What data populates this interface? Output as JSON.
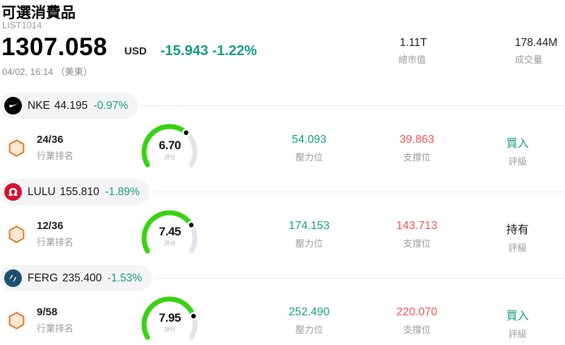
{
  "header": {
    "title": "可選消費品",
    "list_id": "LIST1014",
    "price": "1307.058",
    "currency": "USD",
    "change": "-15.943 -1.22%",
    "timestamp": "04/02, 16:14 （美東）",
    "market_cap": {
      "value": "1.11T",
      "label": "總市值"
    },
    "volume": {
      "value": "178.44M",
      "label": "成交量"
    }
  },
  "labels": {
    "industry_rank": "行業排名",
    "score": "評分",
    "pressure": "壓力位",
    "support": "支撐位",
    "rating": "評級"
  },
  "colors": {
    "teal": "#129c82",
    "red": "#f84f4e",
    "gauge_green": "#38d313",
    "gauge_track": "#e3e3eb",
    "pill_bg": "#f4f4f6",
    "lulu_red": "#d31334",
    "ferg_navy": "#1d506f"
  },
  "rows": [
    {
      "ticker": "NKE",
      "price": "44.195",
      "change": "-0.97%",
      "rank": "24/36",
      "score": 6.7,
      "score_display": "6.70",
      "pressure": "54.093",
      "support": "39.863",
      "rating": "買入",
      "rating_type": "buy",
      "logo": "nike-logo"
    },
    {
      "ticker": "LULU",
      "price": "155.810",
      "change": "-1.89%",
      "rank": "12/36",
      "score": 7.45,
      "score_display": "7.45",
      "pressure": "174.153",
      "support": "143.713",
      "rating": "持有",
      "rating_type": "hold",
      "logo": "lululemon-logo"
    },
    {
      "ticker": "FERG",
      "price": "235.400",
      "change": "-1.53%",
      "rank": "9/58",
      "score": 7.95,
      "score_display": "7.95",
      "pressure": "252.490",
      "support": "220.070",
      "rating": "買入",
      "rating_type": "buy",
      "logo": "ferguson-logo"
    }
  ]
}
